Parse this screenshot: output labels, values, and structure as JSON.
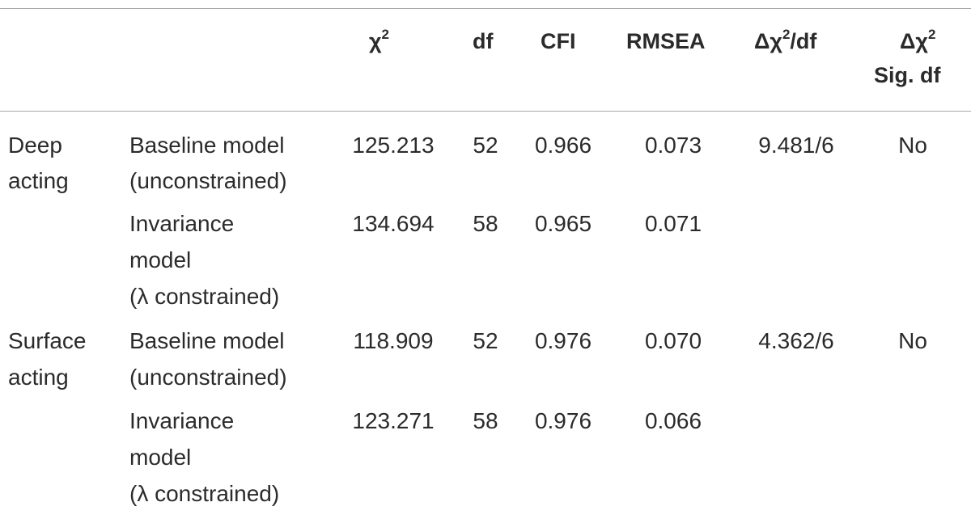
{
  "header": {
    "chi_sq_sym": "χ",
    "chi_sq_sup": "2",
    "df": "df",
    "cfi": "CFI",
    "rmsea": "RMSEA",
    "delta_chi_df_pre": "Δχ",
    "delta_chi_df_sup": "2",
    "delta_chi_df_post": "/df",
    "delta_chi_sig_line1_pre": "Δχ",
    "delta_chi_sig_line1_sup": "2",
    "delta_chi_sig_line2": "Sig. df"
  },
  "groups": [
    {
      "label_line1": "Deep",
      "label_line2": "acting",
      "rows": [
        {
          "model_lines": [
            "Baseline model",
            "(unconstrained)"
          ],
          "chi_sq": "125.213",
          "df": "52",
          "cfi": "0.966",
          "rmsea": "0.073",
          "delta_chi_df": "9.481/6",
          "sig": "No"
        },
        {
          "model_lines": [
            "Invariance",
            "model",
            "(λ constrained)"
          ],
          "chi_sq": "134.694",
          "df": "58",
          "cfi": "0.965",
          "rmsea": "0.071",
          "delta_chi_df": "",
          "sig": ""
        }
      ]
    },
    {
      "label_line1": "Surface",
      "label_line2": "acting",
      "rows": [
        {
          "model_lines": [
            "Baseline model",
            "(unconstrained)"
          ],
          "chi_sq": "118.909",
          "df": "52",
          "cfi": "0.976",
          "rmsea": "0.070",
          "delta_chi_df": "4.362/6",
          "sig": "No"
        },
        {
          "model_lines": [
            "Invariance",
            "model",
            "(λ constrained)"
          ],
          "chi_sq": "123.271",
          "df": "58",
          "cfi": "0.976",
          "rmsea": "0.066",
          "delta_chi_df": "",
          "sig": ""
        }
      ]
    }
  ]
}
